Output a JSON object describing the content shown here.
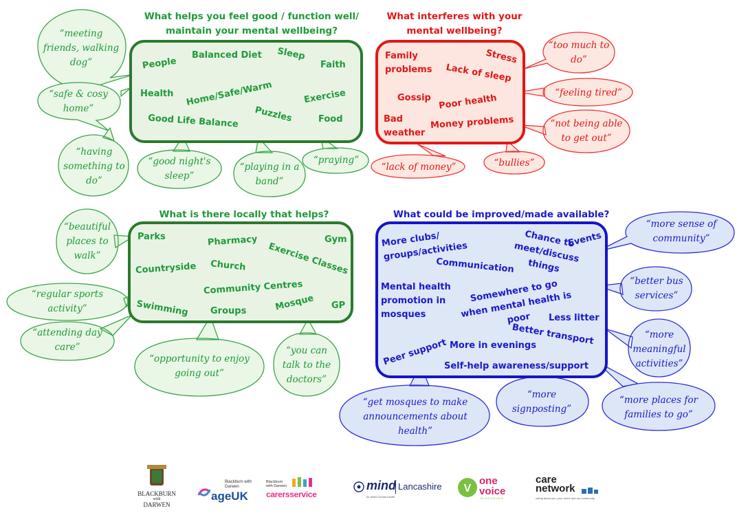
{
  "colors": {
    "green": "#1f9a3a",
    "red": "#e01818",
    "blue": "#1a1ac8"
  },
  "sections": {
    "feel_good": {
      "title": "What helps you feel good / function well/ maintain your mental wellbeing?",
      "items": [
        "People",
        "Balanced Diet",
        "Sleep",
        "Faith",
        "Health",
        "Home/Safe/Warm",
        "Exercise",
        "Puzzles",
        "Good Life Balance",
        "Food"
      ],
      "quotes": [
        "“meeting friends, walking dog”",
        "“safe & cosy home”",
        "“having something to do”",
        "“good night's sleep”",
        "“playing in a band”",
        "“praying”"
      ]
    },
    "interferes": {
      "title": "What interferes with your mental wellbeing?",
      "items": [
        "Family problems",
        "Stress",
        "Lack of sleep",
        "Gossip",
        "Poor health",
        "Bad weather",
        "Money problems"
      ],
      "quotes": [
        "“too much to do”",
        "“feeling tired”",
        "“not being able to get out”",
        "“lack of money”",
        "“bullies”"
      ]
    },
    "local": {
      "title": "What is there locally that helps?",
      "items": [
        "Parks",
        "Pharmacy",
        "Gym",
        "Exercise Classes",
        "Church",
        "Countryside",
        "Community Centres",
        "Swimming",
        "Groups",
        "Mosque",
        "GP"
      ],
      "quotes": [
        "“beautiful places to walk”",
        "“regular sports activity”",
        "“attending day care”",
        "“opportunity to enjoy going out”",
        "“you can talk to the doctors”"
      ]
    },
    "improve": {
      "title": "What could be improved/made available?",
      "items": [
        "More clubs/ groups/activities",
        "Chance to meet/discuss things",
        "Events",
        "Communication",
        "Mental health promotion in mosques",
        "Somewhere to go when mental health is poor",
        "Less litter",
        "Better transport",
        "Peer support",
        "More in evenings",
        "Self-help awareness/support"
      ],
      "quotes": [
        "“more sense of community”",
        "“better bus services”",
        "“more meaningful activities”",
        "“get mosques to make announcements about health”",
        "“more signposting”",
        "“more places for families to go”"
      ]
    }
  },
  "logos": {
    "bwd": {
      "line1": "Blackburn",
      "line2": "with",
      "line3": "Darwen"
    },
    "ageuk": {
      "small": "Blackburn with Darwen",
      "main": "ageUK"
    },
    "carers": {
      "small": "Blackburn with Darwen",
      "main": "carersservice"
    },
    "mind": {
      "main": "mind",
      "region": "Lancashire",
      "tag": "for better mental health"
    },
    "onevoice": {
      "main": "one voice",
      "sub": "BLACKBURN"
    },
    "care": {
      "line1": "care",
      "line2": "network",
      "tag": "caring about you, your home and our community"
    }
  }
}
